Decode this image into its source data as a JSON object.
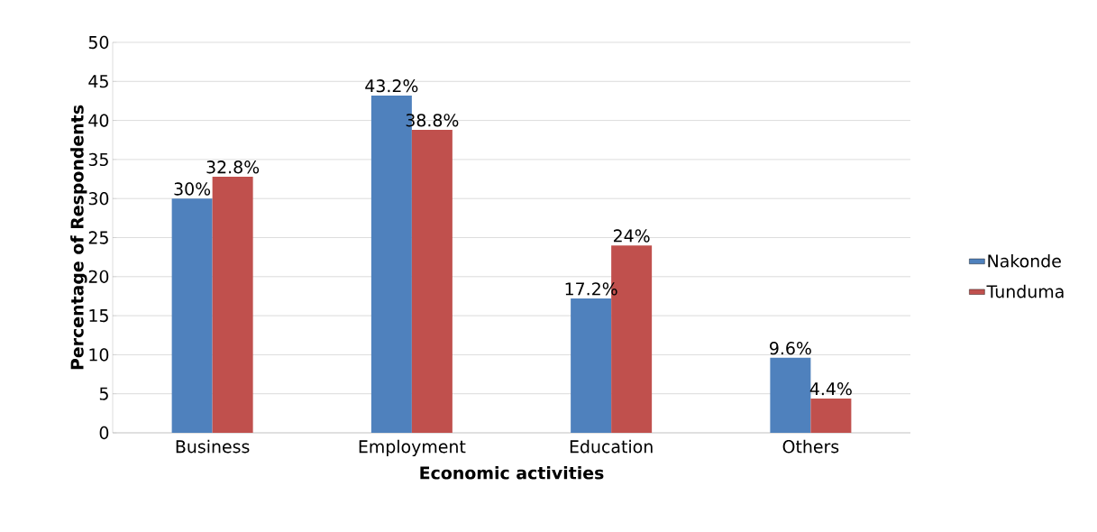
{
  "chart_data": {
    "type": "bar",
    "xlabel": "Economic activities",
    "ylabel": "Percentage of Respondents",
    "categories": [
      "Business",
      "Employment",
      "Education",
      "Others"
    ],
    "series": [
      {
        "name": "Nakonde",
        "color": "#4f81bd",
        "values": [
          30,
          43.2,
          17.2,
          9.6
        ],
        "value_labels": [
          "30%",
          "43.2%",
          "17.2%",
          "9.6%"
        ]
      },
      {
        "name": "Tunduma",
        "color": "#c0504d",
        "values": [
          32.8,
          38.8,
          24,
          4.4
        ],
        "value_labels": [
          "32.8%",
          "38.8%",
          "24%",
          "4.4%"
        ]
      }
    ],
    "ylim": [
      0,
      50
    ],
    "yticks": [
      0,
      5,
      10,
      15,
      20,
      25,
      30,
      35,
      40,
      45,
      50
    ],
    "grid": "y",
    "legend": "right"
  }
}
